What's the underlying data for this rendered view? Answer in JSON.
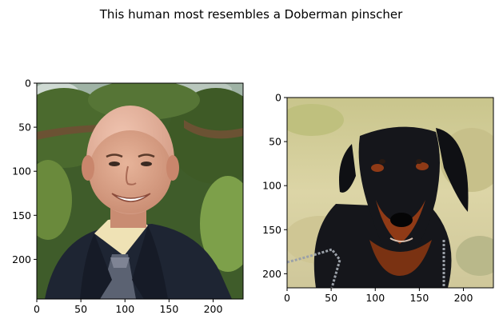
{
  "figure": {
    "title": "This human most resembles a Doberman pinscher"
  },
  "chart_data": [
    {
      "type": "image",
      "image": "photo of a smiling bald man in a dark suit and tie with green trees behind",
      "xlim": [
        0,
        234
      ],
      "ylim": [
        245,
        0
      ],
      "xticks": [
        0,
        50,
        100,
        150,
        200
      ],
      "yticks": [
        0,
        50,
        100,
        150,
        200
      ],
      "xlabel": "",
      "ylabel": "",
      "grid": false
    },
    {
      "type": "image",
      "image": "photo of a black and tan Doberman pinscher on a leash in a grassy field",
      "xlim": [
        0,
        234
      ],
      "ylim": [
        216,
        0
      ],
      "xticks": [
        0,
        50,
        100,
        150,
        200
      ],
      "yticks": [
        0,
        50,
        100,
        150,
        200
      ],
      "xlabel": "",
      "ylabel": "",
      "grid": false
    }
  ],
  "colors": {
    "tree_green": "#4b6a2e",
    "skin": "#d9a087",
    "suit": "#1e2533",
    "shirt": "#efe2b5",
    "grass": "#d7cf9f",
    "dog_black": "#15161b",
    "dog_tan": "#8f3a16"
  }
}
